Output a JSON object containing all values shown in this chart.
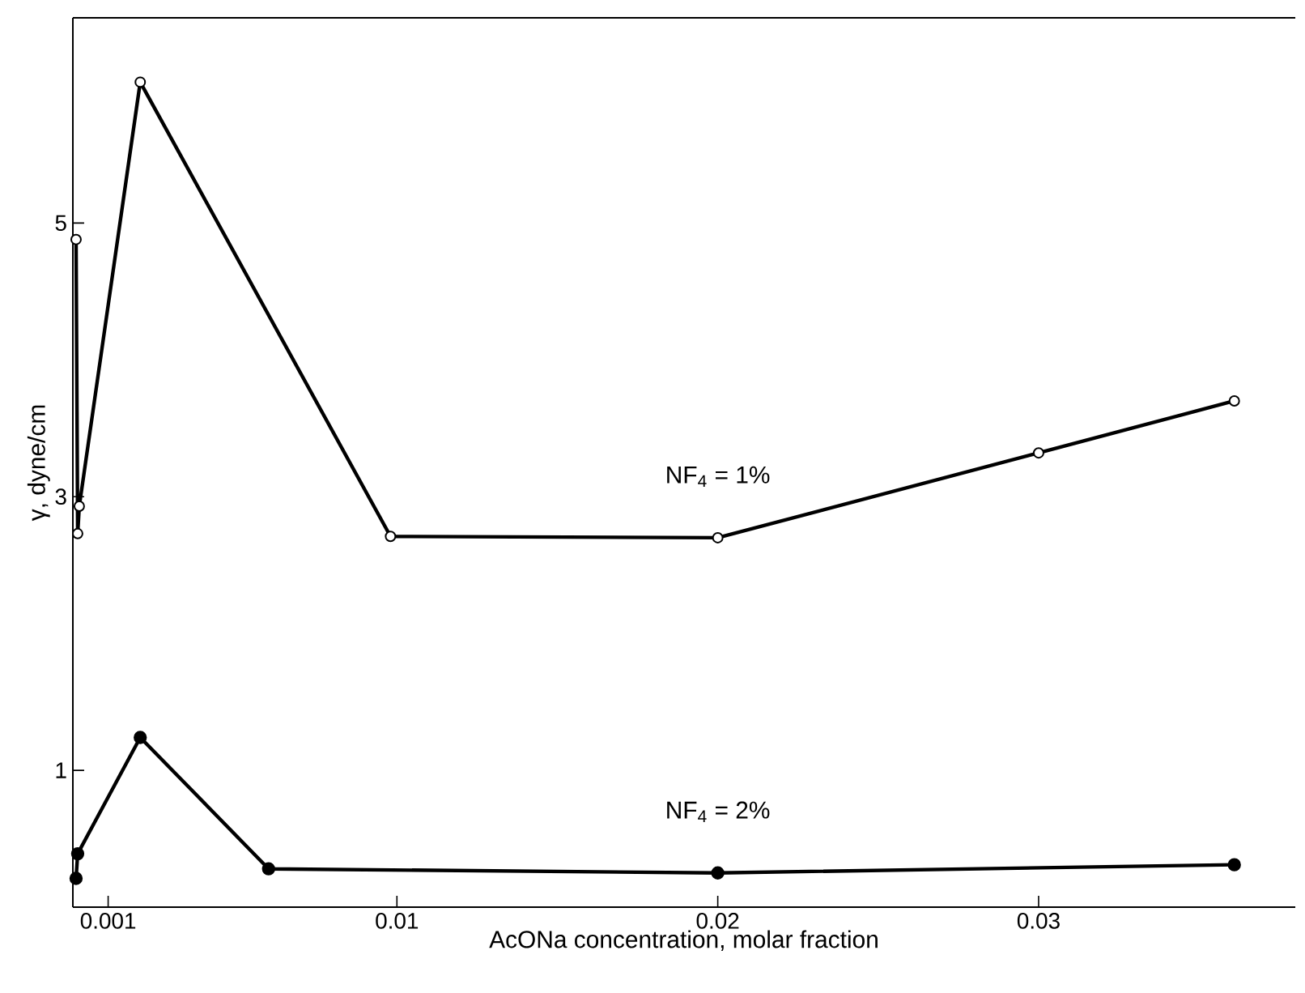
{
  "chart_data": {
    "type": "line",
    "xlabel": "AcONa concentration, molar fraction",
    "ylabel": "γ, dyne/cm",
    "xlim": [
      -0.0001,
      0.038
    ],
    "xticks": [
      0.001,
      0.01,
      0.02,
      0.03
    ],
    "ylim": [
      0,
      6.5
    ],
    "yticks": [
      1,
      3,
      5
    ],
    "marker": "circle",
    "line_style": "solid",
    "legend": false,
    "grid": false,
    "series": [
      {
        "name": "NF$_{4}$ = 1%",
        "color": "#000000",
        "x": [
          0,
          5e-05,
          0.0001,
          0.002,
          0.0098,
          0.02,
          0.03,
          0.0361
        ],
        "values": [
          4.88,
          2.73,
          2.93,
          6.03,
          2.71,
          2.7,
          3.32,
          3.7
        ]
      },
      {
        "name": "NF$_{4}$ = 2%",
        "color": "#000000",
        "x": [
          0,
          5e-05,
          0.002,
          0.006,
          0.02,
          0.0361
        ],
        "values": [
          0.21,
          0.39,
          1.24,
          0.28,
          0.25,
          0.31
        ]
      }
    ]
  }
}
